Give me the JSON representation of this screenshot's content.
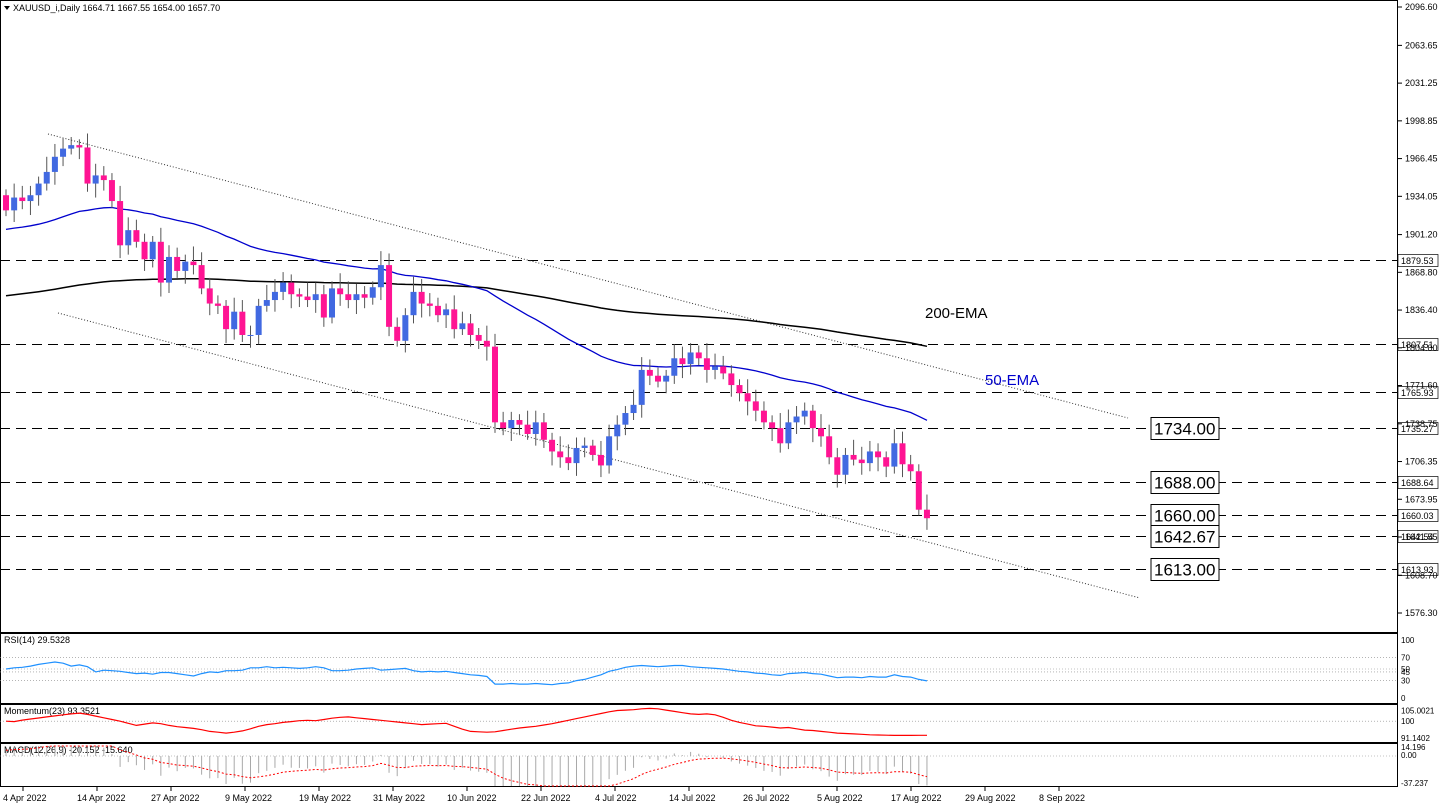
{
  "header": {
    "symbol_line": "XAUUSD_i,Daily  1664.71 1667.55 1654.00 1657.70"
  },
  "colors": {
    "bull": "#4169e1",
    "bear": "#ff1493",
    "ema50": "#0000cd",
    "ema200": "#000000",
    "rsi": "#1e90ff",
    "momentum": "#ff0000",
    "macd_hist": "#a9a9a9",
    "macd_signal": "#ff0000"
  },
  "chart_data": {
    "type": "candlestick",
    "price_axis_ticks": [
      "2096.60",
      "2063.65",
      "2031.25",
      "1998.85",
      "1966.45",
      "1934.05",
      "1901.20",
      "1868.80",
      "1836.40",
      "1804.00",
      "1771.60",
      "1738.75",
      "1706.35",
      "1673.95",
      "1641.55",
      "1608.70",
      "1576.30"
    ],
    "ylim": [
      1555,
      2106
    ],
    "x_ticks": [
      "4 Apr 2022",
      "14 Apr 2022",
      "27 Apr 2022",
      "9 May 2022",
      "19 May 2022",
      "31 May 2022",
      "10 Jun 2022",
      "22 Jun 2022",
      "4 Jul 2022",
      "14 Jul 2022",
      "26 Jul 2022",
      "5 Aug 2022",
      "17 Aug 2022",
      "29 Aug 2022",
      "8 Sep 2022"
    ],
    "levels": [
      {
        "value": 1879.53,
        "axis_label": "1879.53",
        "boxed_label": ""
      },
      {
        "value": 1807.51,
        "axis_label": "1807.51",
        "boxed_label": ""
      },
      {
        "value": 1765.93,
        "axis_label": "1765.93",
        "boxed_label": ""
      },
      {
        "value": 1735.27,
        "axis_label": "1735.27",
        "boxed_label": "1734.00"
      },
      {
        "value": 1688.64,
        "axis_label": "1688.64",
        "boxed_label": "1688.00"
      },
      {
        "value": 1660.03,
        "axis_label": "1660.03",
        "boxed_label": "1660.00"
      },
      {
        "value": 1642.54,
        "axis_label": "1642.54",
        "boxed_label": "1642.67"
      },
      {
        "value": 1613.93,
        "axis_label": "1613.93",
        "boxed_label": "1613.00"
      }
    ],
    "annotations": [
      "200-EMA",
      "50-EMA"
    ],
    "closes": [
      1922,
      1933,
      1930,
      1935,
      1945,
      1955,
      1968,
      1975,
      1978,
      1976,
      1945,
      1952,
      1948,
      1930,
      1892,
      1905,
      1895,
      1880,
      1895,
      1860,
      1882,
      1870,
      1878,
      1875,
      1855,
      1842,
      1840,
      1820,
      1835,
      1815,
      1815,
      1840,
      1845,
      1852,
      1860,
      1850,
      1848,
      1845,
      1850,
      1830,
      1855,
      1850,
      1845,
      1850,
      1847,
      1856,
      1875,
      1822,
      1810,
      1832,
      1852,
      1842,
      1840,
      1832,
      1837,
      1820,
      1825,
      1815,
      1810,
      1805,
      1740,
      1735,
      1742,
      1738,
      1730,
      1740,
      1725,
      1715,
      1710,
      1705,
      1718,
      1720,
      1712,
      1703,
      1728,
      1738,
      1748,
      1755,
      1785,
      1780,
      1775,
      1780,
      1795,
      1790,
      1800,
      1795,
      1785,
      1788,
      1782,
      1772,
      1765,
      1758,
      1750,
      1740,
      1735,
      1722,
      1740,
      1745,
      1750,
      1735,
      1728,
      1710,
      1695,
      1712,
      1708,
      1705,
      1715,
      1710,
      1702,
      1722,
      1704,
      1698,
      1665,
      1657.7
    ],
    "rsi": {
      "label": "RSI(14) 29.5328",
      "ticks": [
        "100",
        "70",
        "50",
        "45",
        "30",
        "0"
      ],
      "values": [
        50,
        52,
        53,
        55,
        58,
        60,
        62,
        60,
        55,
        57,
        54,
        45,
        48,
        47,
        46,
        44,
        42,
        43,
        41,
        44,
        44,
        42,
        40,
        38,
        42,
        45,
        44,
        47,
        47,
        48,
        52,
        52,
        54,
        52,
        53,
        52,
        51,
        52,
        54,
        52,
        47,
        47,
        48,
        50,
        51,
        52,
        48,
        49,
        50,
        51,
        47,
        45,
        46,
        45,
        46,
        44,
        42,
        40,
        39,
        37,
        24,
        24,
        25,
        24,
        24,
        25,
        24,
        23,
        25,
        26,
        30,
        32,
        36,
        40,
        46,
        49,
        53,
        55,
        56,
        55,
        54,
        55,
        56,
        56,
        54,
        53,
        52,
        51,
        50,
        48,
        46,
        45,
        43,
        42,
        40,
        39,
        42,
        43,
        44,
        42,
        41,
        38,
        35,
        36,
        36,
        35,
        37,
        36,
        36,
        40,
        37,
        36,
        32,
        29.5
      ]
    },
    "momentum": {
      "label": "Momentum(23) 93.3521",
      "ticks": [
        "105.0021",
        "100",
        "91.1402"
      ],
      "values": [
        100,
        99.8,
        100.5,
        101,
        101.5,
        102,
        102.5,
        103,
        103.4,
        103.8,
        103.2,
        102.4,
        101.6,
        100.8,
        100,
        99,
        98,
        98.6,
        99.2,
        98.8,
        98,
        97.4,
        97,
        96.6,
        96,
        95.2,
        94.8,
        94.4,
        94.8,
        95.4,
        96.4,
        97.6,
        98.4,
        98.8,
        99.4,
        99.8,
        100.2,
        100.4,
        100.2,
        100.8,
        101.4,
        101.8,
        102,
        101.6,
        101.2,
        100.8,
        100.4,
        100,
        99.6,
        99.2,
        98.8,
        98.4,
        98.6,
        98.8,
        99,
        97.6,
        96.2,
        95.2,
        95,
        94.8,
        95,
        95.6,
        96.2,
        96.8,
        97.2,
        97.6,
        98.2,
        98.8,
        99.6,
        100.4,
        101.2,
        102,
        102.8,
        103.6,
        104.4,
        105,
        105.2,
        105.4,
        105.8,
        106,
        105.8,
        105.2,
        104.6,
        104,
        103.4,
        103.2,
        103.4,
        103,
        101.8,
        100.4,
        99.4,
        98.6,
        97.8,
        97.6,
        97.2,
        96.8,
        97,
        96.4,
        95.8,
        95.6,
        95.2,
        94.8,
        94.4,
        94.2,
        94,
        93.8,
        93.6,
        93.5,
        93.4,
        93.3,
        93.3,
        93.3,
        93.35,
        93.35
      ]
    },
    "macd": {
      "label": "MACD(12,26,9) -20.152 -15.640",
      "ticks": [
        "14.196",
        "0.00",
        "-37.237"
      ]
    }
  }
}
